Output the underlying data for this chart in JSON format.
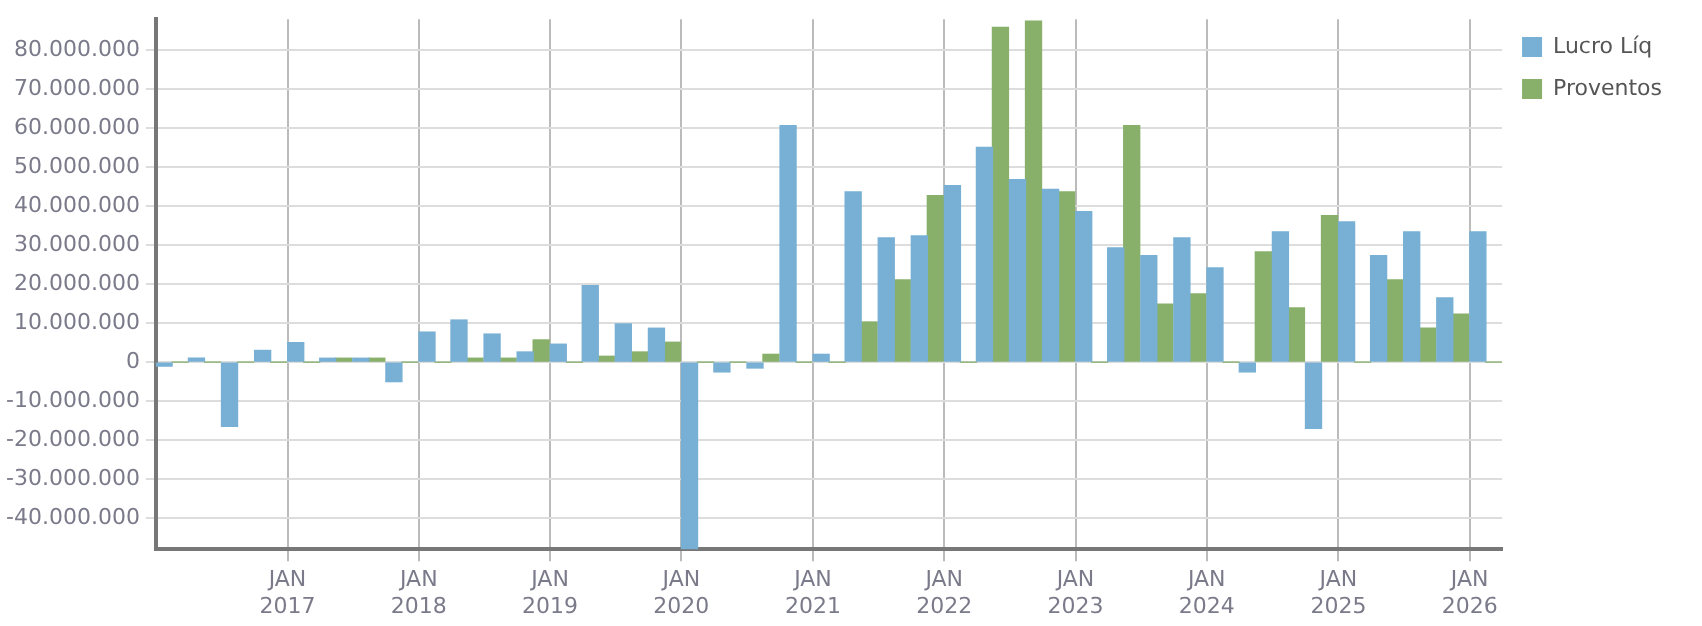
{
  "chart_data": {
    "type": "bar",
    "x": [
      "2016-02-15",
      "2016-05-15",
      "2016-08-15",
      "2016-11-15",
      "2017-02-15",
      "2017-05-15",
      "2017-08-15",
      "2017-11-15",
      "2018-02-15",
      "2018-05-15",
      "2018-08-15",
      "2018-11-15",
      "2019-02-15",
      "2019-05-15",
      "2019-08-15",
      "2019-11-15",
      "2020-02-15",
      "2020-05-15",
      "2020-08-15",
      "2020-11-15",
      "2021-02-15",
      "2021-05-15",
      "2021-08-15",
      "2021-11-15",
      "2022-02-15",
      "2022-05-15",
      "2022-08-15",
      "2022-11-15",
      "2023-02-15",
      "2023-05-15",
      "2023-08-15",
      "2023-11-15",
      "2024-02-15",
      "2024-05-15",
      "2024-08-15",
      "2024-11-15",
      "2025-02-15",
      "2025-05-15",
      "2025-08-15",
      "2025-11-15",
      "2026-02-15"
    ],
    "series": [
      {
        "name": "Lucro Líq",
        "color": "#77b0d4",
        "values": [
          -1000000,
          1000000,
          -16500000,
          3000000,
          5000000,
          1000000,
          1000000,
          -5000000,
          7700000,
          10800000,
          7200000,
          2600000,
          4600000,
          19600000,
          9800000,
          8700000,
          -48000000,
          -2500000,
          -1500000,
          60700000,
          2000000,
          43700000,
          31900000,
          32400000,
          45300000,
          55100000,
          46800000,
          44300000,
          38600000,
          29300000,
          27300000,
          31900000,
          24200000,
          -2500000,
          33400000,
          -17000000,
          36000000,
          27300000,
          33400000,
          16500000,
          33400000
        ]
      },
      {
        "name": "Proventos",
        "color": "#88b06a",
        "values": [
          0,
          0,
          0,
          0,
          0,
          1000000,
          1000000,
          0,
          0,
          1000000,
          1000000,
          5700000,
          0,
          1500000,
          2600000,
          5100000,
          0,
          0,
          2000000,
          0,
          0,
          10300000,
          21100000,
          42700000,
          0,
          85900000,
          87500000,
          43700000,
          0,
          60700000,
          14900000,
          17500000,
          0,
          28300000,
          13900000,
          37600000,
          0,
          21100000,
          8700000,
          12300000,
          0
        ]
      }
    ],
    "xlim": [
      "2016-01",
      "2026-04"
    ],
    "xticks": [
      {
        "value": "2017-01",
        "label": "JAN 2017"
      },
      {
        "value": "2018-01",
        "label": "JAN 2018"
      },
      {
        "value": "2019-01",
        "label": "JAN 2019"
      },
      {
        "value": "2020-01",
        "label": "JAN 2020"
      },
      {
        "value": "2021-01",
        "label": "JAN 2021"
      },
      {
        "value": "2022-01",
        "label": "JAN 2022"
      },
      {
        "value": "2023-01",
        "label": "JAN 2023"
      },
      {
        "value": "2024-01",
        "label": "JAN 2024"
      },
      {
        "value": "2025-01",
        "label": "JAN 2025"
      },
      {
        "value": "2026-01",
        "label": "JAN 2026"
      }
    ],
    "ylim": [
      -48000000,
      88000000
    ],
    "yticks": [
      {
        "value": -40000000,
        "label": "-40.000.000"
      },
      {
        "value": -30000000,
        "label": "-30.000.000"
      },
      {
        "value": -20000000,
        "label": "-20.000.000"
      },
      {
        "value": -10000000,
        "label": "-10.000.000"
      },
      0,
      {
        "value": 10000000,
        "label": "10.000.000"
      },
      {
        "value": 20000000,
        "label": "20.000.000"
      },
      {
        "value": 30000000,
        "label": "30.000.000"
      },
      {
        "value": 40000000,
        "label": "40.000.000"
      },
      {
        "value": 50000000,
        "label": "50.000.000"
      },
      {
        "value": 60000000,
        "label": "60.000.000"
      },
      {
        "value": 70000000,
        "label": "70.000.000"
      },
      {
        "value": 80000000,
        "label": "80.000.000"
      }
    ],
    "grid": true,
    "legend": "top right"
  }
}
